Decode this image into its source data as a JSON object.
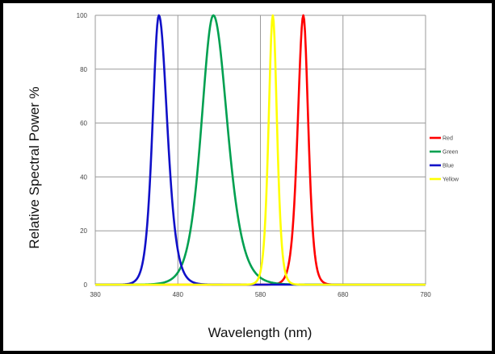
{
  "chart_data": {
    "type": "line",
    "title": "",
    "xlabel": "Wavelength (nm)",
    "ylabel": "Relative Spectral Power %",
    "xlim": [
      380,
      780
    ],
    "ylim": [
      0,
      100
    ],
    "x_ticks": [
      380,
      480,
      580,
      680,
      780
    ],
    "x_tick_labels": [
      "380",
      "480",
      "580",
      "680",
      "780"
    ],
    "y_ticks": [
      0,
      20,
      40,
      60,
      80,
      100
    ],
    "y_tick_labels": [
      "0",
      "20",
      "40",
      "60",
      "80",
      "100"
    ],
    "grid": true,
    "legend_position": "right",
    "series": [
      {
        "name": "Red",
        "color": "#ff0000",
        "peak": 632,
        "fwhm_left": 16,
        "fwhm_right": 14
      },
      {
        "name": "Green",
        "color": "#00a050",
        "peak": 523,
        "fwhm_left": 34,
        "fwhm_right": 40
      },
      {
        "name": "Blue",
        "color": "#1010c8",
        "peak": 457,
        "fwhm_left": 18,
        "fwhm_right": 24
      },
      {
        "name": "Yellow",
        "color": "#ffff00",
        "peak": 595,
        "fwhm_left": 12,
        "fwhm_right": 12
      }
    ]
  }
}
